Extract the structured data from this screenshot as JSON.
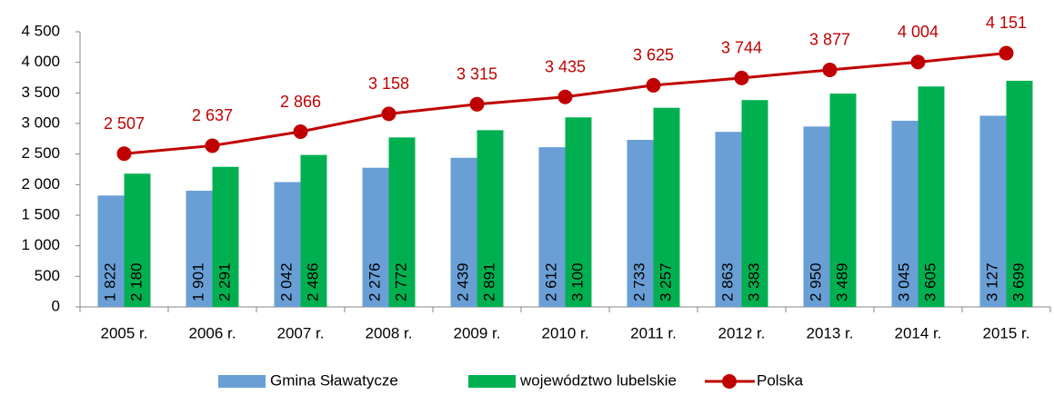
{
  "chart_data": {
    "type": "bar",
    "categories": [
      "2005 r.",
      "2006 r.",
      "2007 r.",
      "2008 r.",
      "2009 r.",
      "2010 r.",
      "2011 r.",
      "2012 r.",
      "2013 r.",
      "2014 r.",
      "2015 r."
    ],
    "series": [
      {
        "name": "Gmina Sławatycze",
        "type": "bar",
        "color": "#6a9fd6",
        "values": [
          1822,
          1901,
          2042,
          2276,
          2439,
          2612,
          2733,
          2863,
          2950,
          3045,
          3127
        ],
        "value_labels": [
          "1 822",
          "1 901",
          "2 042",
          "2 276",
          "2 439",
          "2 612",
          "2 733",
          "2 863",
          "2 950",
          "3 045",
          "3 127"
        ]
      },
      {
        "name": "województwo lubelskie",
        "type": "bar",
        "color": "#00b050",
        "values": [
          2180,
          2291,
          2486,
          2772,
          2891,
          3100,
          3257,
          3383,
          3489,
          3605,
          3699
        ],
        "value_labels": [
          "2 180",
          "2 291",
          "2 486",
          "2 772",
          "2 891",
          "3 100",
          "3 257",
          "3 383",
          "3 489",
          "3 605",
          "3 699"
        ]
      },
      {
        "name": "Polska",
        "type": "line",
        "color": "#c00000",
        "values": [
          2507,
          2637,
          2866,
          3158,
          3315,
          3435,
          3625,
          3744,
          3877,
          4004,
          4151
        ],
        "value_labels": [
          "2 507",
          "2 637",
          "2 866",
          "3 158",
          "3 315",
          "3 435",
          "3 625",
          "3 744",
          "3 877",
          "4 004",
          "4 151"
        ]
      }
    ],
    "ylim": [
      0,
      4500
    ],
    "yticks": [
      0,
      500,
      {
        "value": 1000,
        "label": "1 000"
      },
      {
        "value": 1500,
        "label": "1 500"
      },
      {
        "value": 2000,
        "label": "2 000"
      },
      {
        "value": 2500,
        "label": "2 500"
      },
      {
        "value": 3000,
        "label": "3 000"
      },
      {
        "value": 3500,
        "label": "3 500"
      },
      {
        "value": 4000,
        "label": "4 000"
      },
      {
        "value": 4500,
        "label": "4 500"
      }
    ],
    "grid": false,
    "legend": "bottom"
  }
}
